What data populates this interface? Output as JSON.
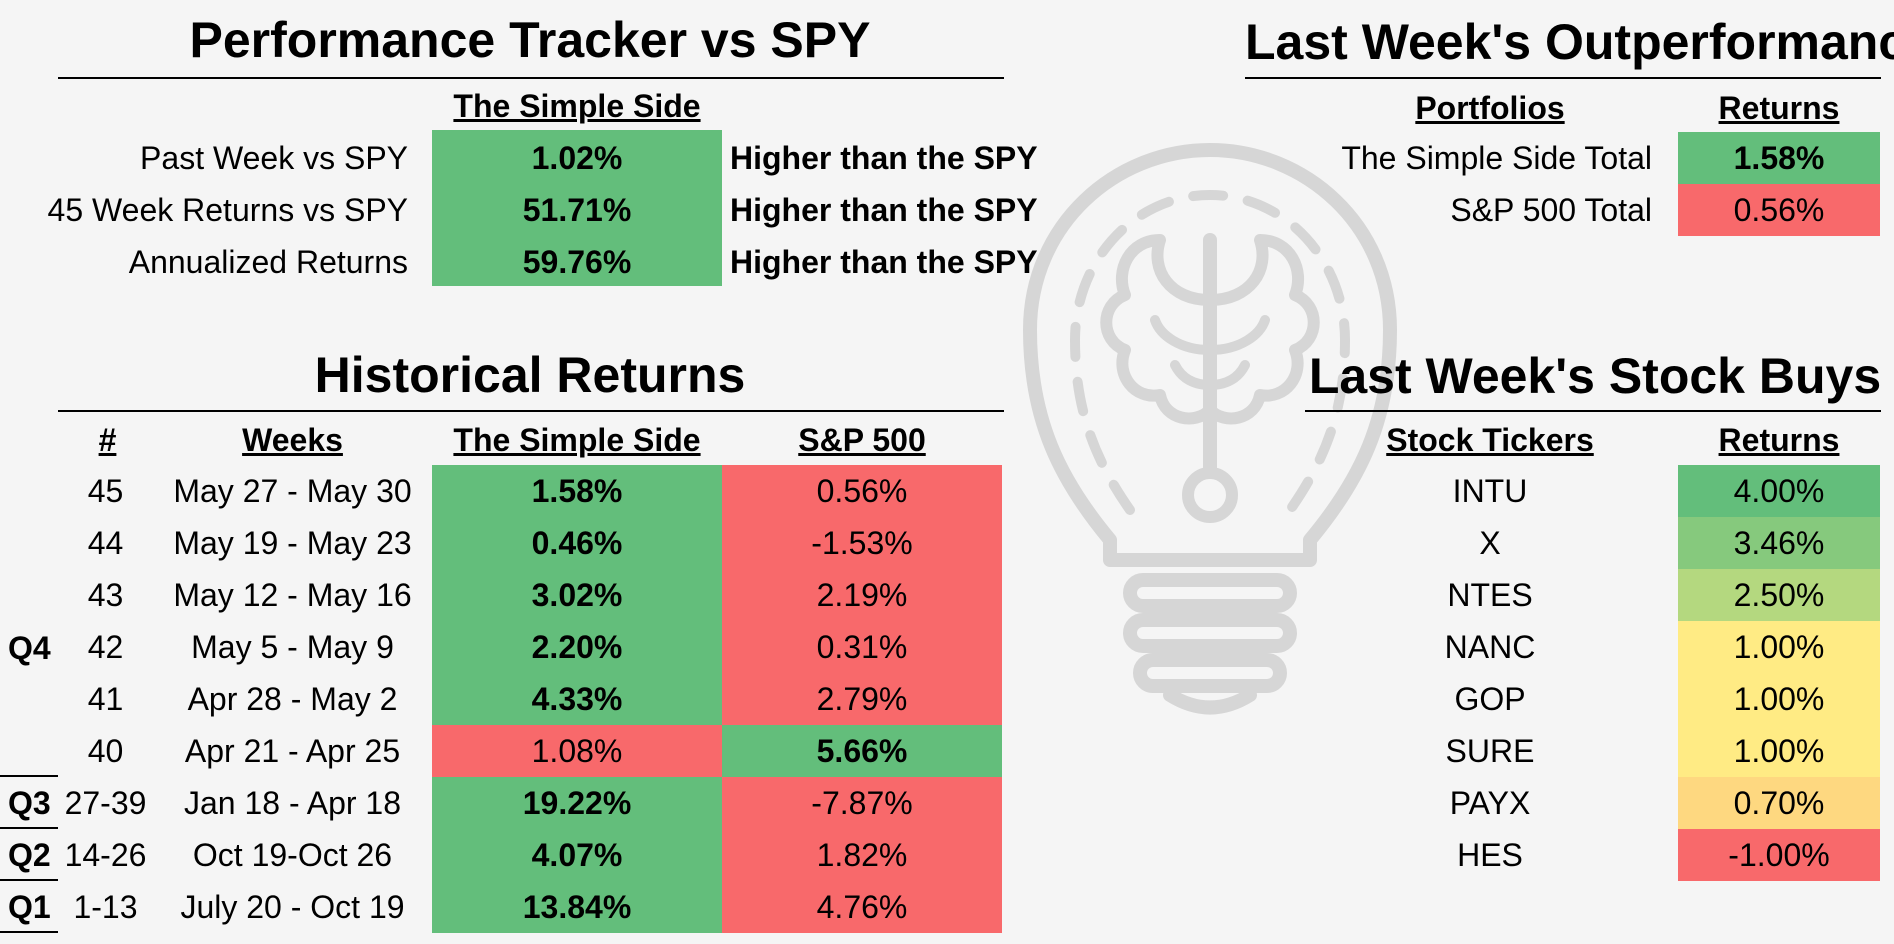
{
  "tracker": {
    "title": "Performance Tracker vs SPY",
    "column_header": "The Simple Side",
    "rows": [
      {
        "label": "Past Week vs SPY",
        "value": "1.02%",
        "note": "Higher than the SPY"
      },
      {
        "label": "45 Week Returns vs SPY",
        "value": "51.71%",
        "note": "Higher than the SPY"
      },
      {
        "label": "Annualized Returns",
        "value": "59.76%",
        "note": "Higher than the SPY"
      }
    ]
  },
  "historical": {
    "title": "Historical Returns",
    "headers": {
      "num": "#",
      "weeks": "Weeks",
      "simple": "The Simple Side",
      "sp": "S&P 500"
    },
    "q4_label": "Q4",
    "rows": [
      {
        "num": "45",
        "weeks": "May 27 - May 30",
        "simple": "1.58%",
        "sp": "0.56%"
      },
      {
        "num": "44",
        "weeks": "May 19 - May 23",
        "simple": "0.46%",
        "sp": "-1.53%"
      },
      {
        "num": "43",
        "weeks": "May 12 - May 16",
        "simple": "3.02%",
        "sp": "2.19%"
      },
      {
        "num": "42",
        "weeks": "May 5 - May 9",
        "simple": "2.20%",
        "sp": "0.31%"
      },
      {
        "num": "41",
        "weeks": "Apr 28 - May 2",
        "simple": "4.33%",
        "sp": "2.79%"
      },
      {
        "num": "40",
        "weeks": "Apr 21 - Apr 25",
        "simple": "1.08%",
        "sp": "5.66%"
      },
      {
        "quarter": "Q3",
        "num": "27-39",
        "weeks": "Jan 18 - Apr 18",
        "simple": "19.22%",
        "sp": "-7.87%"
      },
      {
        "quarter": "Q2",
        "num": "14-26",
        "weeks": "Oct 19-Oct 26",
        "simple": "4.07%",
        "sp": "1.82%"
      },
      {
        "quarter": "Q1",
        "num": "1-13",
        "weeks": "July 20 - Oct 19",
        "simple": "13.84%",
        "sp": "4.76%"
      }
    ]
  },
  "outperformance": {
    "title": "Last Week's Outperformance",
    "headers": {
      "portfolios": "Portfolios",
      "returns": "Returns"
    },
    "rows": [
      {
        "name": "The Simple Side Total",
        "value": "1.58%"
      },
      {
        "name": "S&P 500 Total",
        "value": "0.56%"
      }
    ]
  },
  "buys": {
    "title": "Last Week's Stock Buys",
    "headers": {
      "tickers": "Stock Tickers",
      "returns": "Returns"
    },
    "rows": [
      {
        "ticker": "INTU",
        "value": "4.00%",
        "color": "#63be7b"
      },
      {
        "ticker": "X",
        "value": "3.46%",
        "color": "#86c97d"
      },
      {
        "ticker": "NTES",
        "value": "2.50%",
        "color": "#b4d87f"
      },
      {
        "ticker": "NANC",
        "value": "1.00%",
        "color": "#ffeb84"
      },
      {
        "ticker": "GOP",
        "value": "1.00%",
        "color": "#ffeb84"
      },
      {
        "ticker": "SURE",
        "value": "1.00%",
        "color": "#ffeb84"
      },
      {
        "ticker": "PAYX",
        "value": "0.70%",
        "color": "#fed880"
      },
      {
        "ticker": "HES",
        "value": "-1.00%",
        "color": "#f8696b"
      }
    ]
  },
  "colors": {
    "green": "#63be7b",
    "red": "#f8696b",
    "background": "#f5f5f5"
  },
  "watermark": "lightbulb-brain-icon"
}
